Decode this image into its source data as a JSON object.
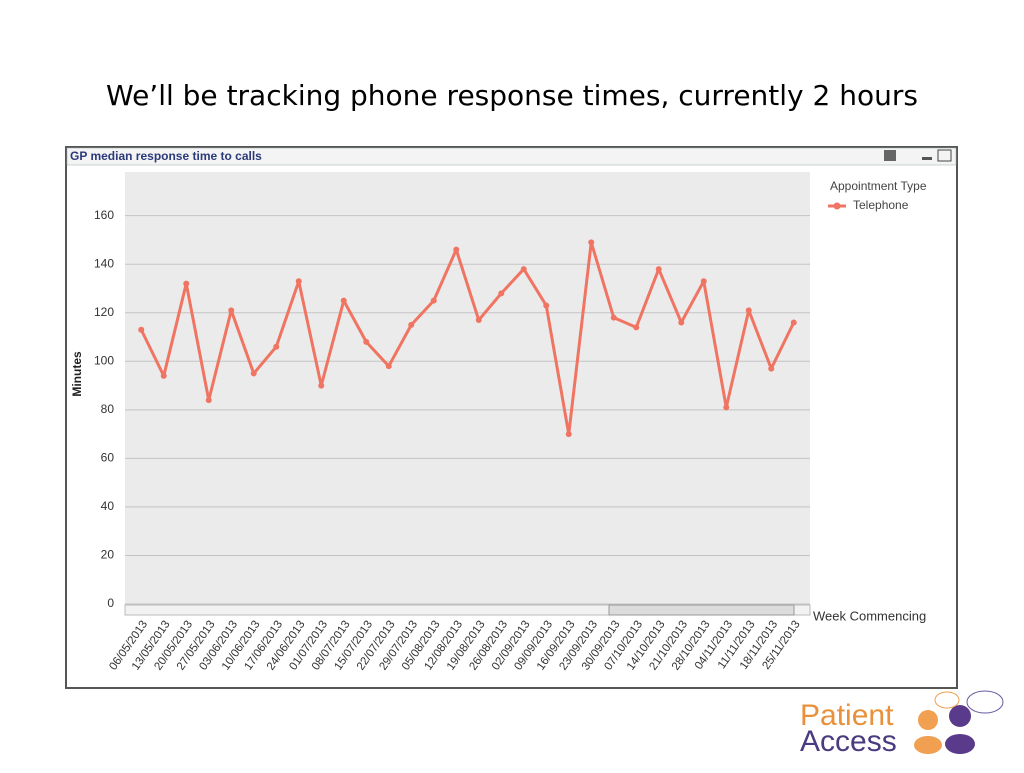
{
  "slide_title": "We’ll be tracking phone response times, currently 2 hours",
  "chart_data": {
    "type": "line",
    "title": "GP median response time to calls",
    "x_label": "Week Commencing",
    "y_label": "Minutes",
    "legend_title": "Appointment Type",
    "categories": [
      "06/05/2013",
      "13/05/2013",
      "20/05/2013",
      "27/05/2013",
      "03/06/2013",
      "10/06/2013",
      "17/06/2013",
      "24/06/2013",
      "01/07/2013",
      "08/07/2013",
      "15/07/2013",
      "22/07/2013",
      "29/07/2013",
      "05/08/2013",
      "12/08/2013",
      "19/08/2013",
      "26/08/2013",
      "02/09/2013",
      "09/09/2013",
      "16/09/2013",
      "23/09/2013",
      "30/09/2013",
      "07/10/2013",
      "14/10/2013",
      "21/10/2013",
      "28/10/2013",
      "04/11/2013",
      "11/11/2013",
      "18/11/2013",
      "25/11/2013"
    ],
    "series": [
      {
        "name": "Telephone",
        "color": "#f07462",
        "values": [
          113,
          94,
          132,
          84,
          121,
          95,
          106,
          133,
          90,
          125,
          108,
          98,
          115,
          125,
          146,
          117,
          128,
          138,
          123,
          70,
          149,
          118,
          114,
          138,
          116,
          133,
          81,
          121,
          97,
          116
        ]
      }
    ],
    "ylim": [
      0,
      178
    ],
    "yticks": [
      0,
      20,
      40,
      60,
      80,
      100,
      120,
      140,
      160
    ],
    "grid": true
  },
  "logo": {
    "line1": "Patient",
    "line2": "Access"
  }
}
